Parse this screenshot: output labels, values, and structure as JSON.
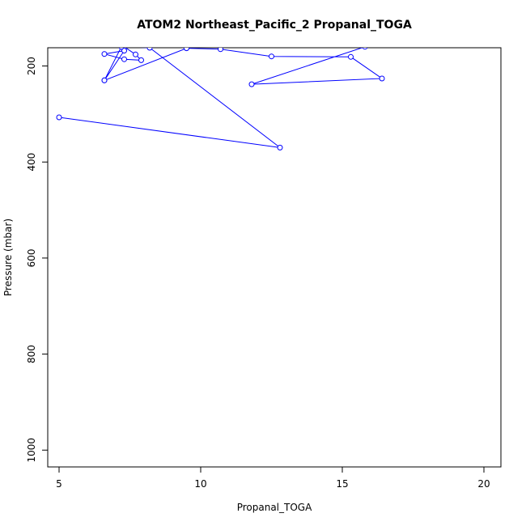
{
  "chart_data": {
    "type": "line",
    "title": "ATOM2 Northeast_Pacific_2 Propanal_TOGA",
    "xlabel": "Propanal_TOGA",
    "ylabel": "Pressure (mbar)",
    "xlim": [
      4.6,
      20.6
    ],
    "ylim": [
      1035,
      162
    ],
    "y_reversed": true,
    "xticks": [
      5,
      10,
      15,
      20
    ],
    "yticks": [
      200,
      400,
      600,
      800,
      1000
    ],
    "grid": false,
    "legend": "none",
    "series": [
      {
        "color": "#0000ff",
        "marker": "open-circle",
        "points": [
          [
            5.0,
            307
          ],
          [
            12.8,
            370
          ],
          [
            8.2,
            162
          ],
          [
            7.3,
            160
          ],
          [
            7.7,
            176
          ],
          [
            7.9,
            188
          ],
          [
            7.3,
            186
          ],
          [
            6.6,
            175
          ],
          [
            7.3,
            168
          ],
          [
            6.6,
            230
          ],
          [
            7.2,
            160
          ],
          [
            6.6,
            230
          ],
          [
            9.5,
            163
          ],
          [
            10.7,
            165
          ],
          [
            12.5,
            180
          ],
          [
            15.3,
            181
          ],
          [
            16.4,
            226
          ],
          [
            11.8,
            238
          ],
          [
            15.8,
            160
          ]
        ]
      }
    ]
  }
}
